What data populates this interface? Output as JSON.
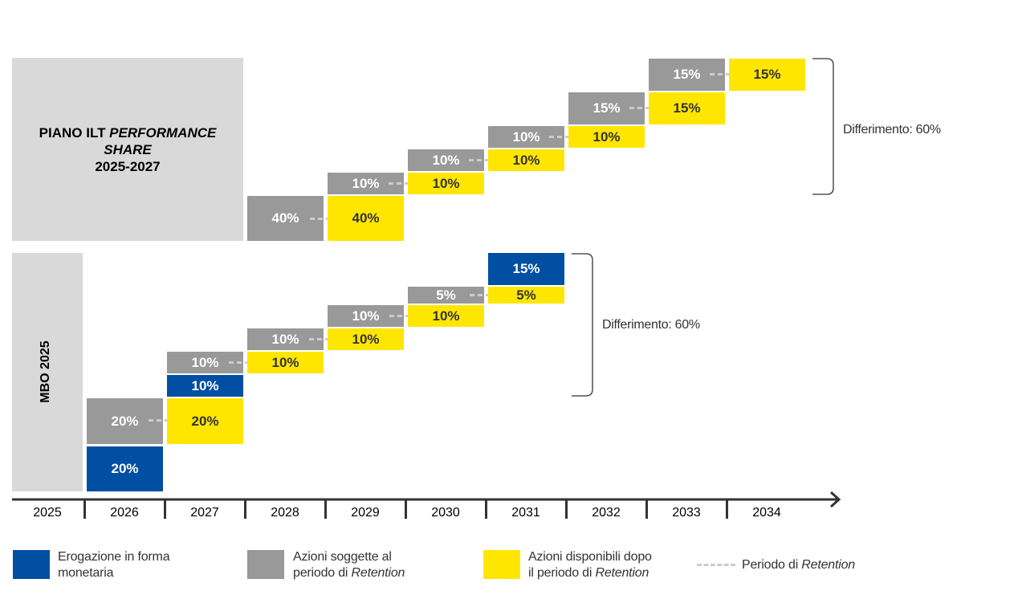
{
  "ilt": {
    "title_line1_normal": "PIANO ILT ",
    "title_line1_italic": "PERFORMANCE",
    "title_line2_italic": "SHARE",
    "title_line3": "2025-2027",
    "pairs": [
      {
        "grey": "40%",
        "yellow": "40%"
      },
      {
        "grey": "10%",
        "yellow": "10%"
      },
      {
        "grey": "10%",
        "yellow": "10%"
      },
      {
        "grey": "10%",
        "yellow": "10%"
      },
      {
        "grey": "15%",
        "yellow": "15%"
      },
      {
        "grey": "15%",
        "yellow": "15%"
      }
    ],
    "deferral_label": "Differimento: 60%"
  },
  "mbo": {
    "title": "MBO 2025",
    "cash_2026": "20%",
    "pair_2026": {
      "grey": "20%",
      "yellow": "20%"
    },
    "cash_2027": "10%",
    "pair_2027": {
      "grey": "10%",
      "yellow": "10%"
    },
    "pair_2028": {
      "grey": "10%",
      "yellow": "10%"
    },
    "pair_2029": {
      "grey": "10%",
      "yellow": "10%"
    },
    "pair_2030": {
      "grey": "5%",
      "yellow": "5%"
    },
    "cash_2031": "15%",
    "deferral_label": "Differimento: 60%"
  },
  "timeline": {
    "years": [
      "2025",
      "2026",
      "2027",
      "2028",
      "2029",
      "2030",
      "2031",
      "2032",
      "2033",
      "2034"
    ]
  },
  "legend": {
    "cash_line1": "Erogazione in forma",
    "cash_line2": "monetaria",
    "shares_line1": "Azioni soggette al",
    "shares_line2_normal": "periodo di ",
    "shares_line2_italic": "Retention",
    "available_line1": "Azioni disponibili dopo",
    "available_line2_normal": "il periodo di ",
    "available_line2_italic": "Retention",
    "retention_normal": "Periodo di ",
    "retention_italic": "Retention"
  },
  "colors": {
    "cash": "#004fa3",
    "shares": "#999999",
    "available": "#ffe600",
    "panel": "#d9d9d9"
  }
}
